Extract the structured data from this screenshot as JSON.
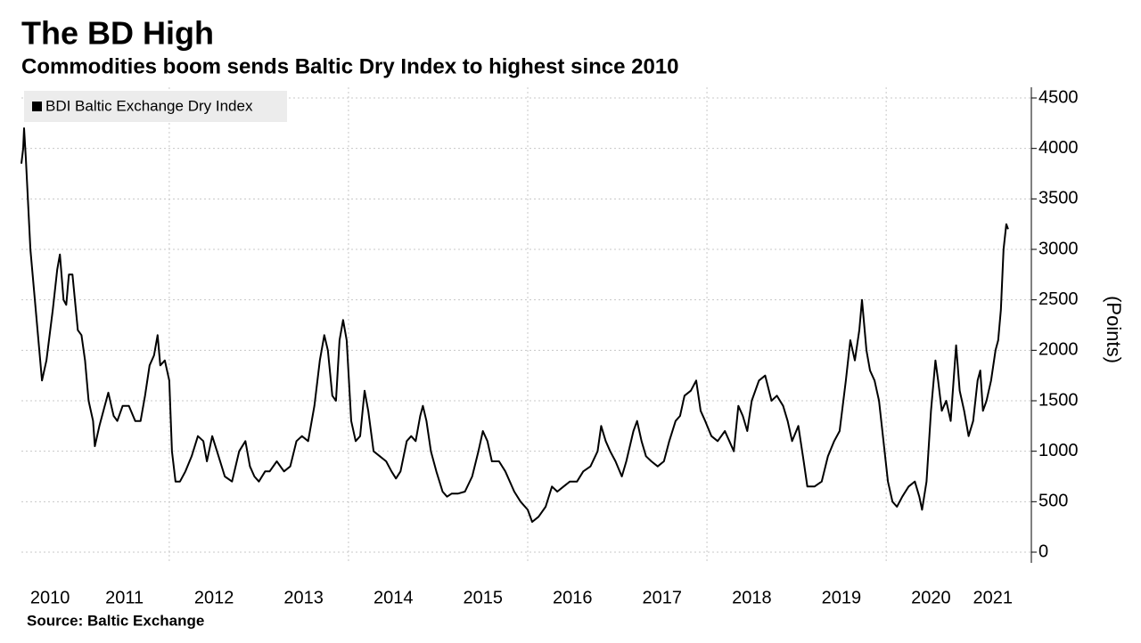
{
  "chart_data": {
    "type": "line",
    "title": "The BD High",
    "subtitle": "Commodities boom sends Baltic Dry Index to highest since 2010",
    "source": "Source: Baltic Exchange",
    "y_label": "(Points)",
    "series": [
      {
        "name": "BDI Baltic Exchange Dry Index",
        "color": "#000000",
        "x": [
          2010.35,
          2010.37,
          2010.38,
          2010.4,
          2010.45,
          2010.5,
          2010.55,
          2010.58,
          2010.63,
          2010.7,
          2010.75,
          2010.78,
          2010.82,
          2010.85,
          2010.88,
          2010.92,
          2010.98,
          2011.02,
          2011.06,
          2011.1,
          2011.15,
          2011.17,
          2011.22,
          2011.28,
          2011.32,
          2011.38,
          2011.42,
          2011.48,
          2011.55,
          2011.62,
          2011.68,
          2011.73,
          2011.78,
          2011.83,
          2011.87,
          2011.9,
          2011.95,
          2012.0,
          2012.03,
          2012.07,
          2012.12,
          2012.18,
          2012.25,
          2012.32,
          2012.38,
          2012.42,
          2012.48,
          2012.55,
          2012.62,
          2012.7,
          2012.78,
          2012.85,
          2012.9,
          2012.95,
          2013.0,
          2013.07,
          2013.12,
          2013.2,
          2013.28,
          2013.35,
          2013.42,
          2013.48,
          2013.55,
          2013.62,
          2013.68,
          2013.73,
          2013.77,
          2013.82,
          2013.86,
          2013.9,
          2013.94,
          2013.98,
          2014.03,
          2014.08,
          2014.13,
          2014.18,
          2014.22,
          2014.28,
          2014.35,
          2014.42,
          2014.48,
          2014.53,
          2014.58,
          2014.65,
          2014.7,
          2014.75,
          2014.8,
          2014.83,
          2014.87,
          2014.92,
          2014.98,
          2015.05,
          2015.1,
          2015.15,
          2015.22,
          2015.3,
          2015.38,
          2015.45,
          2015.5,
          2015.55,
          2015.6,
          2015.68,
          2015.75,
          2015.85,
          2015.92,
          2016.0,
          2016.05,
          2016.12,
          2016.2,
          2016.27,
          2016.33,
          2016.4,
          2016.47,
          2016.55,
          2016.62,
          2016.7,
          2016.78,
          2016.82,
          2016.87,
          2016.92,
          2016.98,
          2017.05,
          2017.1,
          2017.18,
          2017.22,
          2017.27,
          2017.32,
          2017.38,
          2017.45,
          2017.52,
          2017.58,
          2017.65,
          2017.7,
          2017.75,
          2017.82,
          2017.88,
          2017.93,
          2017.98,
          2018.05,
          2018.12,
          2018.2,
          2018.25,
          2018.3,
          2018.35,
          2018.4,
          2018.45,
          2018.5,
          2018.58,
          2018.65,
          2018.72,
          2018.78,
          2018.85,
          2018.9,
          2018.95,
          2019.02,
          2019.08,
          2019.12,
          2019.2,
          2019.28,
          2019.35,
          2019.42,
          2019.48,
          2019.55,
          2019.6,
          2019.65,
          2019.7,
          2019.73,
          2019.78,
          2019.82,
          2019.87,
          2019.92,
          2019.97,
          2020.02,
          2020.07,
          2020.12,
          2020.18,
          2020.25,
          2020.32,
          2020.37,
          2020.4,
          2020.45,
          2020.5,
          2020.55,
          2020.58,
          2020.62,
          2020.67,
          2020.72,
          2020.78,
          2020.82,
          2020.87,
          2020.92,
          2020.97,
          2021.02,
          2021.05,
          2021.08,
          2021.12,
          2021.17,
          2021.22,
          2021.25,
          2021.28,
          2021.31,
          2021.34,
          2021.36
        ],
        "values": [
          3850,
          4000,
          4200,
          3900,
          3000,
          2500,
          2000,
          1700,
          1900,
          2400,
          2800,
          2950,
          2500,
          2450,
          2750,
          2750,
          2200,
          2150,
          1900,
          1500,
          1300,
          1050,
          1250,
          1450,
          1580,
          1350,
          1300,
          1450,
          1450,
          1300,
          1300,
          1550,
          1850,
          1950,
          2150,
          1850,
          1900,
          1700,
          1000,
          700,
          700,
          800,
          950,
          1150,
          1100,
          900,
          1150,
          950,
          750,
          700,
          1000,
          1100,
          850,
          750,
          700,
          800,
          800,
          900,
          800,
          850,
          1100,
          1150,
          1100,
          1450,
          1900,
          2150,
          2000,
          1550,
          1500,
          2100,
          2300,
          2100,
          1300,
          1100,
          1150,
          1600,
          1400,
          1000,
          950,
          900,
          800,
          730,
          800,
          1100,
          1150,
          1100,
          1350,
          1450,
          1300,
          1000,
          800,
          600,
          550,
          580,
          580,
          600,
          750,
          1000,
          1200,
          1100,
          900,
          900,
          800,
          600,
          500,
          420,
          300,
          350,
          450,
          650,
          600,
          650,
          700,
          700,
          800,
          850,
          1000,
          1250,
          1100,
          1000,
          900,
          750,
          900,
          1200,
          1300,
          1100,
          950,
          900,
          850,
          900,
          1100,
          1300,
          1350,
          1550,
          1600,
          1700,
          1400,
          1300,
          1150,
          1100,
          1200,
          1100,
          1000,
          1450,
          1350,
          1200,
          1500,
          1700,
          1750,
          1500,
          1550,
          1450,
          1300,
          1100,
          1250,
          900,
          650,
          650,
          700,
          950,
          1100,
          1200,
          1700,
          2100,
          1900,
          2200,
          2500,
          2000,
          1800,
          1700,
          1500,
          1100,
          700,
          500,
          450,
          550,
          650,
          700,
          550,
          420,
          700,
          1400,
          1900,
          1700,
          1400,
          1500,
          1300,
          2050,
          1600,
          1400,
          1150,
          1300,
          1700,
          1800,
          1400,
          1500,
          1700,
          2000,
          2100,
          2400,
          3000,
          3250,
          3200
        ]
      }
    ],
    "xlim": [
      2010.35,
      2021.62
    ],
    "xticks": [
      {
        "value": 2010.67,
        "label": "2010"
      },
      {
        "value": 2011.5,
        "label": "2011"
      },
      {
        "value": 2012.5,
        "label": "2012"
      },
      {
        "value": 2013.5,
        "label": "2013"
      },
      {
        "value": 2014.5,
        "label": "2014"
      },
      {
        "value": 2015.5,
        "label": "2015"
      },
      {
        "value": 2016.5,
        "label": "2016"
      },
      {
        "value": 2017.5,
        "label": "2017"
      },
      {
        "value": 2018.5,
        "label": "2018"
      },
      {
        "value": 2019.5,
        "label": "2019"
      },
      {
        "value": 2020.5,
        "label": "2020"
      },
      {
        "value": 2021.19,
        "label": "2021"
      }
    ],
    "xgrid": [
      2012,
      2014,
      2016,
      2018,
      2020
    ],
    "ylim": [
      0,
      4500
    ],
    "yticks": [
      0,
      500,
      1000,
      1500,
      2000,
      2500,
      3000,
      3500,
      4000,
      4500
    ],
    "grid": true,
    "y_axis_side": "right",
    "legend": "top-left"
  }
}
